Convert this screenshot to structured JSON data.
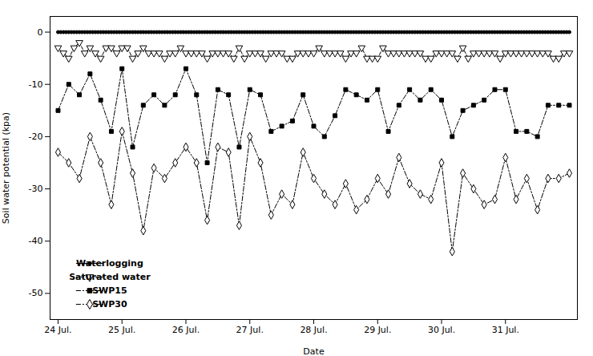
{
  "chart_data": {
    "type": "line",
    "xlabel": "Date",
    "ylabel": "Soil water potential (kpa)",
    "xlim": [
      -3,
      195
    ],
    "xticks": [
      {
        "value": 0,
        "label": "24 Jul."
      },
      {
        "value": 24,
        "label": "25 Jul."
      },
      {
        "value": 48,
        "label": "26 Jul."
      },
      {
        "value": 72,
        "label": "27 Jul."
      },
      {
        "value": 96,
        "label": "28 Jul."
      },
      {
        "value": 120,
        "label": "29 Jul."
      },
      {
        "value": 144,
        "label": "30 Jul."
      },
      {
        "value": 168,
        "label": "31 Jul."
      }
    ],
    "ylim": [
      -55,
      3
    ],
    "yticks": [
      0,
      -10,
      -20,
      -30,
      -40,
      -50
    ],
    "legend": "lower left",
    "series": [
      {
        "name": "Waterlogging",
        "color": "#000000",
        "marker": "circle",
        "line_style": "solid",
        "x": [
          0,
          1,
          2,
          3,
          4,
          5,
          6,
          7,
          8,
          9,
          10,
          11,
          12,
          13,
          14,
          15,
          16,
          17,
          18,
          19,
          20,
          21,
          22,
          23,
          24,
          25,
          26,
          27,
          28,
          29,
          30,
          31,
          32,
          33,
          34,
          35,
          36,
          37,
          38,
          39,
          40,
          41,
          42,
          43,
          44,
          45,
          46,
          47,
          48,
          49,
          50,
          51,
          52,
          53,
          54,
          55,
          56,
          57,
          58,
          59,
          60,
          61,
          62,
          63,
          64,
          65,
          66,
          67,
          68,
          69,
          70,
          71,
          72,
          73,
          74,
          75,
          76,
          77,
          78,
          79,
          80,
          81,
          82,
          83,
          84,
          85,
          86,
          87,
          88,
          89,
          90,
          91,
          92,
          93,
          94,
          95,
          96,
          97,
          98,
          99,
          100,
          101,
          102,
          103,
          104,
          105,
          106,
          107,
          108,
          109,
          110,
          111,
          112,
          113,
          114,
          115,
          116,
          117,
          118,
          119,
          120,
          121,
          122,
          123,
          124,
          125,
          126,
          127,
          128,
          129,
          130,
          131,
          132,
          133,
          134,
          135,
          136,
          137,
          138,
          139,
          140,
          141,
          142,
          143,
          144,
          145,
          146,
          147,
          148,
          149,
          150,
          151,
          152,
          153,
          154,
          155,
          156,
          157,
          158,
          159,
          160,
          161,
          162,
          163,
          164,
          165,
          166,
          167,
          168,
          169,
          170,
          171,
          172,
          173,
          174,
          175,
          176,
          177,
          178,
          179,
          180,
          181,
          182,
          183,
          184,
          185,
          186,
          187,
          188,
          189,
          190,
          191,
          192
        ],
        "values": [
          0,
          0,
          0,
          0,
          0,
          0,
          0,
          0,
          0,
          0,
          0,
          0,
          0,
          0,
          0,
          0,
          0,
          0,
          0,
          0,
          0,
          0,
          0,
          0,
          0,
          0,
          0,
          0,
          0,
          0,
          0,
          0,
          0,
          0,
          0,
          0,
          0,
          0,
          0,
          0,
          0,
          0,
          0,
          0,
          0,
          0,
          0,
          0,
          0,
          0,
          0,
          0,
          0,
          0,
          0,
          0,
          0,
          0,
          0,
          0,
          0,
          0,
          0,
          0,
          0,
          0,
          0,
          0,
          0,
          0,
          0,
          0,
          0,
          0,
          0,
          0,
          0,
          0,
          0,
          0,
          0,
          0,
          0,
          0,
          0,
          0,
          0,
          0,
          0,
          0,
          0,
          0,
          0,
          0,
          0,
          0,
          0,
          0,
          0,
          0,
          0,
          0,
          0,
          0,
          0,
          0,
          0,
          0,
          0,
          0,
          0,
          0,
          0,
          0,
          0,
          0,
          0,
          0,
          0,
          0,
          0,
          0,
          0,
          0,
          0,
          0,
          0,
          0,
          0,
          0,
          0,
          0,
          0,
          0,
          0,
          0,
          0,
          0,
          0,
          0,
          0,
          0,
          0,
          0,
          0,
          0,
          0,
          0,
          0,
          0,
          0,
          0,
          0,
          0,
          0,
          0,
          0,
          0,
          0,
          0,
          0,
          0,
          0,
          0,
          0,
          0,
          0,
          0,
          0,
          0,
          0,
          0,
          0,
          0,
          0,
          0,
          0,
          0,
          0,
          0,
          0,
          0,
          0,
          0,
          0,
          0,
          0,
          0,
          0,
          0,
          0,
          0,
          0
        ]
      },
      {
        "name": "Saturated water",
        "color": "#000000",
        "marker": "triangle-down-open",
        "line_style": "dashed",
        "x": [
          0,
          2,
          4,
          6,
          8,
          10,
          12,
          14,
          16,
          18,
          20,
          22,
          24,
          26,
          28,
          30,
          32,
          34,
          36,
          38,
          40,
          42,
          44,
          46,
          48,
          50,
          52,
          54,
          56,
          58,
          60,
          62,
          64,
          66,
          68,
          70,
          72,
          74,
          76,
          78,
          80,
          82,
          84,
          86,
          88,
          90,
          92,
          94,
          96,
          98,
          100,
          102,
          104,
          106,
          108,
          110,
          112,
          114,
          116,
          118,
          120,
          122,
          124,
          126,
          128,
          130,
          132,
          134,
          136,
          138,
          140,
          142,
          144,
          146,
          148,
          150,
          152,
          154,
          156,
          158,
          160,
          162,
          164,
          166,
          168,
          170,
          172,
          174,
          176,
          178,
          180,
          182,
          184,
          186,
          188,
          190,
          192
        ],
        "values": [
          -3,
          -4,
          -5,
          -3,
          -2,
          -4,
          -3,
          -4,
          -5,
          -3,
          -3,
          -4,
          -3,
          -3,
          -5,
          -4,
          -3,
          -4,
          -4,
          -4,
          -5,
          -4,
          -4,
          -3,
          -4,
          -4,
          -4,
          -4,
          -5,
          -4,
          -4,
          -4,
          -4,
          -5,
          -3,
          -5,
          -4,
          -4,
          -4,
          -5,
          -4,
          -4,
          -4,
          -5,
          -5,
          -4,
          -4,
          -4,
          -4,
          -3,
          -4,
          -4,
          -4,
          -4,
          -5,
          -4,
          -4,
          -3,
          -5,
          -5,
          -5,
          -3,
          -4,
          -4,
          -4,
          -4,
          -4,
          -4,
          -4,
          -5,
          -5,
          -4,
          -4,
          -4,
          -4,
          -5,
          -3,
          -5,
          -4,
          -4,
          -4,
          -4,
          -4,
          -5,
          -4,
          -4,
          -4,
          -4,
          -4,
          -4,
          -4,
          -4,
          -4,
          -5,
          -5,
          -4,
          -4
        ]
      },
      {
        "name": "SWP15",
        "color": "#000000",
        "marker": "square",
        "line_style": "dashdot",
        "x": [
          0,
          4,
          8,
          12,
          16,
          20,
          24,
          28,
          32,
          36,
          40,
          44,
          48,
          52,
          56,
          60,
          64,
          68,
          72,
          76,
          80,
          84,
          88,
          92,
          96,
          100,
          104,
          108,
          112,
          116,
          120,
          124,
          128,
          132,
          136,
          140,
          144,
          148,
          152,
          156,
          160,
          164,
          168,
          172,
          176,
          180,
          184,
          188,
          192
        ],
        "values": [
          -15,
          -10,
          -12,
          -8,
          -13,
          -19,
          -7,
          -22,
          -14,
          -12,
          -14,
          -12,
          -7,
          -12,
          -25,
          -11,
          -12,
          -22,
          -11,
          -12,
          -19,
          -18,
          -17,
          -12,
          -18,
          -20,
          -16,
          -11,
          -12,
          -13,
          -11,
          -19,
          -14,
          -11,
          -13,
          -11,
          -13,
          -20,
          -15,
          -14,
          -13,
          -11,
          -11,
          -19,
          -19,
          -20,
          -14,
          -14,
          -14
        ]
      },
      {
        "name": "SWP30",
        "color": "#000000",
        "marker": "diamond-open",
        "line_style": "dashdot",
        "x": [
          0,
          4,
          8,
          12,
          16,
          20,
          24,
          28,
          32,
          36,
          40,
          44,
          48,
          52,
          56,
          60,
          64,
          68,
          72,
          76,
          80,
          84,
          88,
          92,
          96,
          100,
          104,
          108,
          112,
          116,
          120,
          124,
          128,
          132,
          136,
          140,
          144,
          148,
          152,
          156,
          160,
          164,
          168,
          172,
          176,
          180,
          184,
          188,
          192
        ],
        "values": [
          -23,
          -25,
          -28,
          -20,
          -25,
          -33,
          -19,
          -27,
          -38,
          -26,
          -28,
          -25,
          -22,
          -25,
          -36,
          -22,
          -23,
          -37,
          -20,
          -25,
          -35,
          -31,
          -33,
          -23,
          -28,
          -31,
          -33,
          -29,
          -34,
          -32,
          -28,
          -31,
          -24,
          -29,
          -31,
          -32,
          -25,
          -42,
          -27,
          -30,
          -33,
          -32,
          -24,
          -32,
          -28,
          -34,
          -28,
          -28,
          -27
        ]
      }
    ]
  }
}
